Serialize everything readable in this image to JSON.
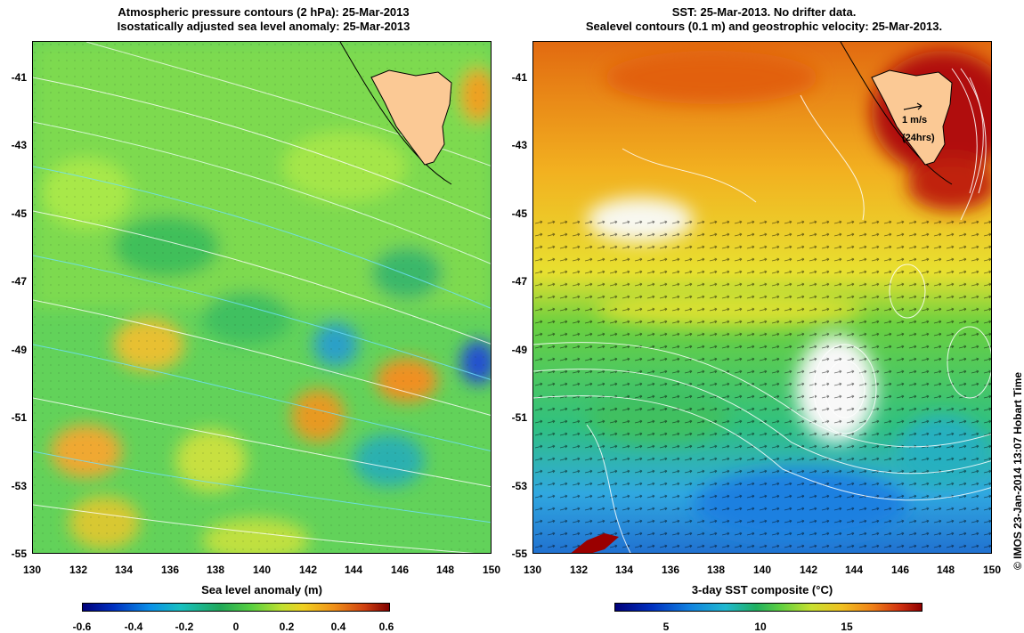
{
  "left_panel": {
    "title_line1": "Atmospheric pressure contours (2 hPa): 25-Mar-2013",
    "title_line2": "Isostatically adjusted sea level anomaly: 25-Mar-2013",
    "colorbar_label": "Sea level anomaly (m)",
    "colorbar_ticks": [
      "-0.6",
      "-0.4",
      "-0.2",
      "0",
      "0.2",
      "0.4",
      "0.6"
    ],
    "colors": {
      "low": "#0a1a8c",
      "mid": "#5ad25a",
      "high": "#a00a0a"
    }
  },
  "right_panel": {
    "title_line1": "SST: 25-Mar-2013. No drifter data.",
    "title_line2": "Sealevel contours (0.1 m) and geostrophic velocity: 25-Mar-2013.",
    "colorbar_label": "3-day SST composite (°C)",
    "colorbar_ticks": [
      "5",
      "10",
      "15"
    ],
    "velocity_scale_label": "1 m/s",
    "velocity_scale_sub": "(24hrs)",
    "colors": {
      "warm": "#d95a0a",
      "hot": "#9a0000",
      "cool": "#1e9be0",
      "land": "#fbc995"
    }
  },
  "axes": {
    "y_ticks": [
      "-41",
      "-43",
      "-45",
      "-47",
      "-49",
      "-51",
      "-53",
      "-55"
    ],
    "x_ticks": [
      "130",
      "132",
      "134",
      "136",
      "138",
      "140",
      "142",
      "144",
      "146",
      "148",
      "150"
    ]
  },
  "credit": "© IMOS 23-Jan-2014 13:07 Hobart Time"
}
